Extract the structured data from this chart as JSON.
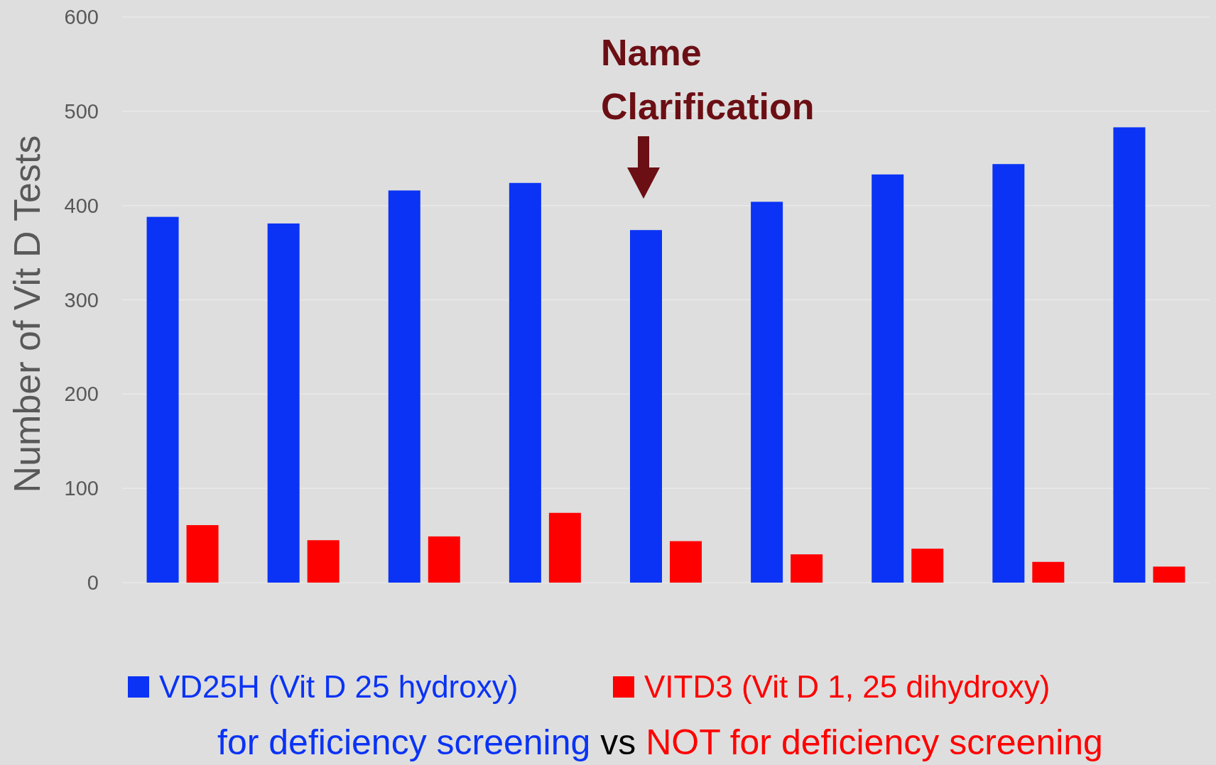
{
  "chart_data": {
    "type": "bar",
    "ylabel": "Number of Vit D Tests",
    "categories": [
      null,
      null,
      null,
      null,
      null,
      null,
      null,
      null,
      null
    ],
    "series": [
      {
        "name": "VD25H (Vit D 25 hydroxy)",
        "color": "#0a33f5",
        "values": [
          388,
          381,
          416,
          424,
          374,
          404,
          433,
          444,
          483
        ]
      },
      {
        "name": "VITD3 (Vit D 1, 25 dihydroxy)",
        "color": "#ff0000",
        "values": [
          61,
          45,
          49,
          74,
          44,
          30,
          36,
          22,
          17
        ]
      }
    ],
    "ylim": [
      0,
      600
    ],
    "yticks": [
      0,
      100,
      200,
      300,
      400,
      500,
      600
    ],
    "grid": "y",
    "legend": "bottom",
    "annotations": [
      "Name\nClarification",
      "for deficiency screening",
      "vs",
      "NOT for deficiency screening"
    ]
  }
}
